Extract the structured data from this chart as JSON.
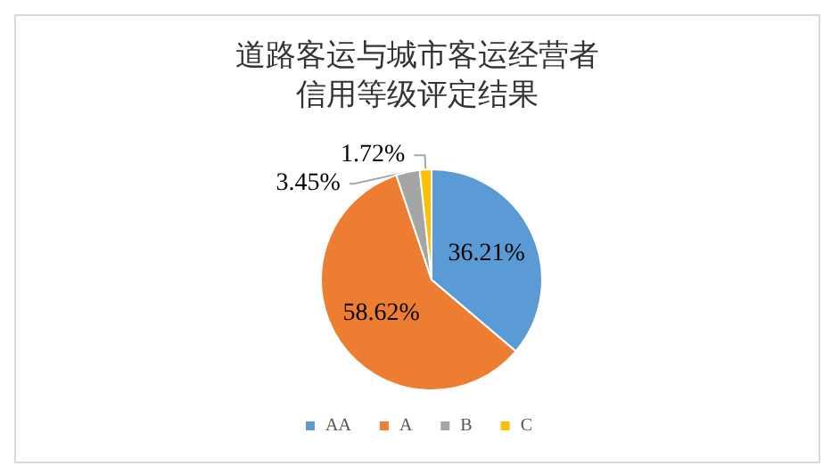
{
  "chart_data": {
    "type": "pie",
    "title": "道路客运与城市客运经营者信用等级评定结果",
    "categories": [
      "AA",
      "A",
      "B",
      "C"
    ],
    "values": [
      36.21,
      58.62,
      3.45,
      1.72
    ],
    "colors": [
      "#5b9bd5",
      "#ed7d31",
      "#a5a5a5",
      "#ffc000"
    ],
    "value_labels": [
      "36.21%",
      "58.62%",
      "3.45%",
      "1.72%"
    ],
    "legend": "bottom"
  }
}
